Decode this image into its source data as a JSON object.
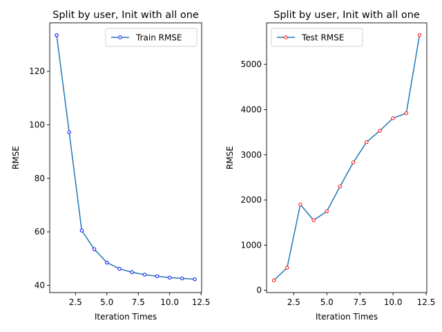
{
  "chart_data": [
    {
      "type": "line",
      "title": "Split by user, Init with all one",
      "xlabel": "Iteration Times",
      "ylabel": "RMSE",
      "xlim": [
        0.45,
        12.55
      ],
      "ylim": [
        37.3,
        138.1
      ],
      "xticks": [
        2.5,
        5.0,
        7.5,
        10.0,
        12.5
      ],
      "xtick_labels": [
        "2.5",
        "5.0",
        "7.5",
        "10.0",
        "12.5"
      ],
      "yticks": [
        40,
        60,
        80,
        100,
        120
      ],
      "ytick_labels": [
        "40",
        "60",
        "80",
        "100",
        "120"
      ],
      "grid": false,
      "legend_position": "upper right",
      "marker_edge_color": "#0000ff",
      "line_color": "#1f77b4",
      "series": [
        {
          "name": "Train RMSE",
          "x": [
            1,
            2,
            3,
            4,
            5,
            6,
            7,
            8,
            9,
            10,
            11,
            12
          ],
          "y": [
            133.5,
            97.2,
            60.5,
            53.5,
            48.5,
            46.2,
            44.9,
            44.0,
            43.4,
            42.9,
            42.6,
            42.3
          ]
        }
      ]
    },
    {
      "type": "line",
      "title": "Split by user, Init with all one",
      "xlabel": "Iteration Times",
      "ylabel": "RMSE",
      "xlim": [
        0.45,
        12.55
      ],
      "ylim": [
        -50,
        5920
      ],
      "xticks": [
        2.5,
        5.0,
        7.5,
        10.0,
        12.5
      ],
      "xtick_labels": [
        "2.5",
        "5.0",
        "7.5",
        "10.0",
        "12.5"
      ],
      "yticks": [
        0,
        1000,
        2000,
        3000,
        4000,
        5000
      ],
      "ytick_labels": [
        "0",
        "1000",
        "2000",
        "3000",
        "4000",
        "5000"
      ],
      "grid": false,
      "legend_position": "upper left",
      "marker_edge_color": "#ff0000",
      "line_color": "#1f77b4",
      "series": [
        {
          "name": "Test RMSE",
          "x": [
            1,
            2,
            3,
            4,
            5,
            6,
            7,
            8,
            9,
            10,
            11,
            12
          ],
          "y": [
            220,
            500,
            1900,
            1550,
            1750,
            2300,
            2830,
            3280,
            3530,
            3810,
            3920,
            5650
          ]
        }
      ]
    }
  ]
}
